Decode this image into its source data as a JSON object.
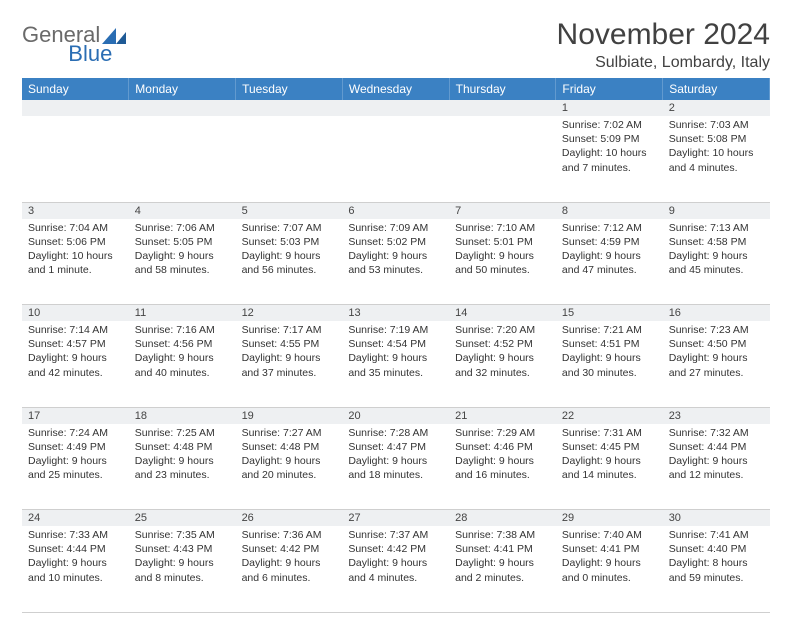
{
  "brand": {
    "word1": "General",
    "word2": "Blue"
  },
  "title": "November 2024",
  "location": "Sulbiate, Lombardy, Italy",
  "colors": {
    "header_bg": "#3b81c3",
    "header_text": "#ffffff",
    "daynum_bg": "#eef0f2",
    "rule": "#cfcfcf",
    "logo_gray": "#6a6a6a",
    "logo_blue": "#2a6db3",
    "text": "#333333"
  },
  "weekdays": [
    "Sunday",
    "Monday",
    "Tuesday",
    "Wednesday",
    "Thursday",
    "Friday",
    "Saturday"
  ],
  "weeks": [
    {
      "nums": [
        "",
        "",
        "",
        "",
        "",
        "1",
        "2"
      ],
      "cells": [
        null,
        null,
        null,
        null,
        null,
        {
          "sunrise": "7:02 AM",
          "sunset": "5:09 PM",
          "daylight": "10 hours and 7 minutes."
        },
        {
          "sunrise": "7:03 AM",
          "sunset": "5:08 PM",
          "daylight": "10 hours and 4 minutes."
        }
      ]
    },
    {
      "nums": [
        "3",
        "4",
        "5",
        "6",
        "7",
        "8",
        "9"
      ],
      "cells": [
        {
          "sunrise": "7:04 AM",
          "sunset": "5:06 PM",
          "daylight": "10 hours and 1 minute."
        },
        {
          "sunrise": "7:06 AM",
          "sunset": "5:05 PM",
          "daylight": "9 hours and 58 minutes."
        },
        {
          "sunrise": "7:07 AM",
          "sunset": "5:03 PM",
          "daylight": "9 hours and 56 minutes."
        },
        {
          "sunrise": "7:09 AM",
          "sunset": "5:02 PM",
          "daylight": "9 hours and 53 minutes."
        },
        {
          "sunrise": "7:10 AM",
          "sunset": "5:01 PM",
          "daylight": "9 hours and 50 minutes."
        },
        {
          "sunrise": "7:12 AM",
          "sunset": "4:59 PM",
          "daylight": "9 hours and 47 minutes."
        },
        {
          "sunrise": "7:13 AM",
          "sunset": "4:58 PM",
          "daylight": "9 hours and 45 minutes."
        }
      ]
    },
    {
      "nums": [
        "10",
        "11",
        "12",
        "13",
        "14",
        "15",
        "16"
      ],
      "cells": [
        {
          "sunrise": "7:14 AM",
          "sunset": "4:57 PM",
          "daylight": "9 hours and 42 minutes."
        },
        {
          "sunrise": "7:16 AM",
          "sunset": "4:56 PM",
          "daylight": "9 hours and 40 minutes."
        },
        {
          "sunrise": "7:17 AM",
          "sunset": "4:55 PM",
          "daylight": "9 hours and 37 minutes."
        },
        {
          "sunrise": "7:19 AM",
          "sunset": "4:54 PM",
          "daylight": "9 hours and 35 minutes."
        },
        {
          "sunrise": "7:20 AM",
          "sunset": "4:52 PM",
          "daylight": "9 hours and 32 minutes."
        },
        {
          "sunrise": "7:21 AM",
          "sunset": "4:51 PM",
          "daylight": "9 hours and 30 minutes."
        },
        {
          "sunrise": "7:23 AM",
          "sunset": "4:50 PM",
          "daylight": "9 hours and 27 minutes."
        }
      ]
    },
    {
      "nums": [
        "17",
        "18",
        "19",
        "20",
        "21",
        "22",
        "23"
      ],
      "cells": [
        {
          "sunrise": "7:24 AM",
          "sunset": "4:49 PM",
          "daylight": "9 hours and 25 minutes."
        },
        {
          "sunrise": "7:25 AM",
          "sunset": "4:48 PM",
          "daylight": "9 hours and 23 minutes."
        },
        {
          "sunrise": "7:27 AM",
          "sunset": "4:48 PM",
          "daylight": "9 hours and 20 minutes."
        },
        {
          "sunrise": "7:28 AM",
          "sunset": "4:47 PM",
          "daylight": "9 hours and 18 minutes."
        },
        {
          "sunrise": "7:29 AM",
          "sunset": "4:46 PM",
          "daylight": "9 hours and 16 minutes."
        },
        {
          "sunrise": "7:31 AM",
          "sunset": "4:45 PM",
          "daylight": "9 hours and 14 minutes."
        },
        {
          "sunrise": "7:32 AM",
          "sunset": "4:44 PM",
          "daylight": "9 hours and 12 minutes."
        }
      ]
    },
    {
      "nums": [
        "24",
        "25",
        "26",
        "27",
        "28",
        "29",
        "30"
      ],
      "cells": [
        {
          "sunrise": "7:33 AM",
          "sunset": "4:44 PM",
          "daylight": "9 hours and 10 minutes."
        },
        {
          "sunrise": "7:35 AM",
          "sunset": "4:43 PM",
          "daylight": "9 hours and 8 minutes."
        },
        {
          "sunrise": "7:36 AM",
          "sunset": "4:42 PM",
          "daylight": "9 hours and 6 minutes."
        },
        {
          "sunrise": "7:37 AM",
          "sunset": "4:42 PM",
          "daylight": "9 hours and 4 minutes."
        },
        {
          "sunrise": "7:38 AM",
          "sunset": "4:41 PM",
          "daylight": "9 hours and 2 minutes."
        },
        {
          "sunrise": "7:40 AM",
          "sunset": "4:41 PM",
          "daylight": "9 hours and 0 minutes."
        },
        {
          "sunrise": "7:41 AM",
          "sunset": "4:40 PM",
          "daylight": "8 hours and 59 minutes."
        }
      ]
    }
  ],
  "labels": {
    "sunrise": "Sunrise: ",
    "sunset": "Sunset: ",
    "daylight": "Daylight: "
  }
}
